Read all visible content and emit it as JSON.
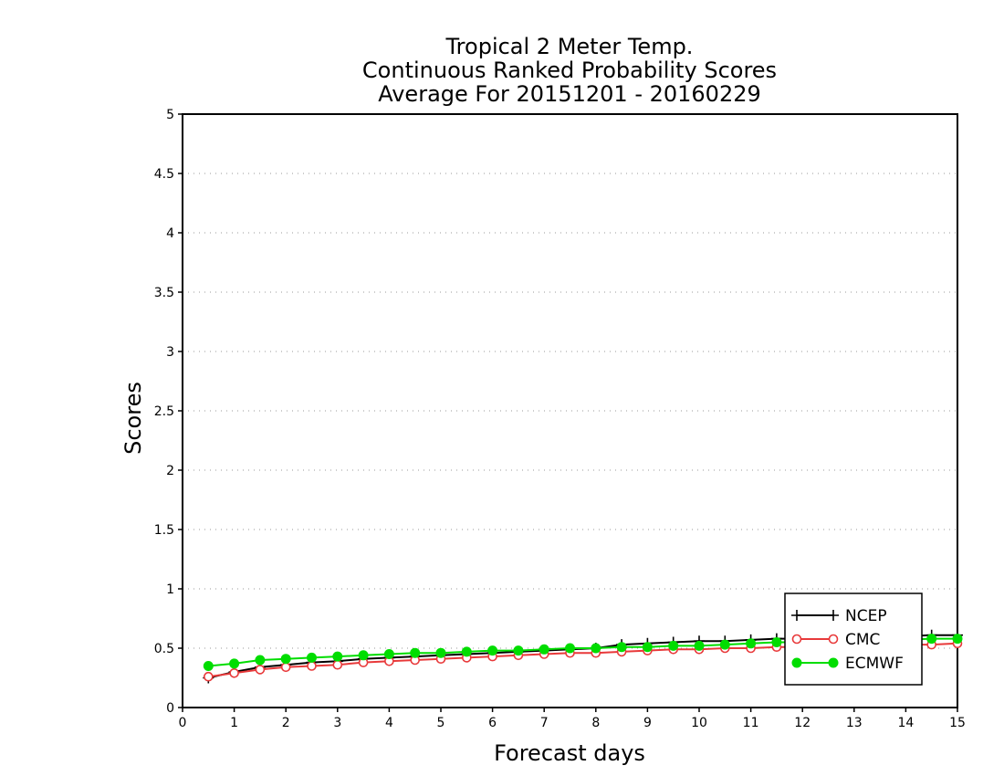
{
  "chart_data": {
    "type": "line",
    "title": [
      "Tropical 2 Meter Temp.",
      "Continuous Ranked Probability Scores",
      "Average For 20151201 - 20160229"
    ],
    "xlabel": "Forecast days",
    "ylabel": "Scores",
    "xlim": [
      0,
      15
    ],
    "ylim": [
      0,
      5
    ],
    "xticks": [
      0,
      1,
      2,
      3,
      4,
      5,
      6,
      7,
      8,
      9,
      10,
      11,
      12,
      13,
      14,
      15
    ],
    "yticks": [
      0,
      0.5,
      1,
      1.5,
      2,
      2.5,
      3,
      3.5,
      4,
      4.5,
      5
    ],
    "ytick_labels": [
      "0",
      "0.5",
      "1",
      "1.5",
      "2",
      "2.5",
      "3",
      "3.5",
      "4",
      "4.5",
      "5"
    ],
    "grid": "horizontal dotted",
    "legend_position": "bottom-right",
    "x": [
      0.5,
      1,
      1.5,
      2,
      2.5,
      3,
      3.5,
      4,
      4.5,
      5,
      5.5,
      6,
      6.5,
      7,
      7.5,
      8,
      8.5,
      9,
      9.5,
      10,
      10.5,
      11,
      11.5,
      12,
      12.5,
      13,
      13.5,
      14,
      14.5,
      15
    ],
    "series": [
      {
        "name": "NCEP",
        "color": "#000000",
        "marker": "plus",
        "values": [
          0.25,
          0.3,
          0.34,
          0.36,
          0.38,
          0.39,
          0.41,
          0.42,
          0.43,
          0.44,
          0.45,
          0.46,
          0.47,
          0.48,
          0.49,
          0.5,
          0.53,
          0.54,
          0.55,
          0.56,
          0.56,
          0.57,
          0.58,
          0.58,
          0.59,
          0.59,
          0.6,
          0.6,
          0.61,
          0.61
        ]
      },
      {
        "name": "CMC",
        "color": "#e8393a",
        "marker": "open-circle",
        "values": [
          0.26,
          0.29,
          0.32,
          0.34,
          0.35,
          0.36,
          0.38,
          0.39,
          0.4,
          0.41,
          0.42,
          0.43,
          0.44,
          0.45,
          0.46,
          0.46,
          0.47,
          0.48,
          0.49,
          0.49,
          0.5,
          0.5,
          0.51,
          0.51,
          0.52,
          0.52,
          0.53,
          0.53,
          0.53,
          0.54
        ]
      },
      {
        "name": "ECMWF",
        "color": "#00dd00",
        "marker": "filled-circle",
        "values": [
          0.35,
          0.37,
          0.4,
          0.41,
          0.42,
          0.43,
          0.44,
          0.45,
          0.46,
          0.46,
          0.47,
          0.48,
          0.48,
          0.49,
          0.5,
          0.5,
          0.51,
          0.51,
          0.52,
          0.52,
          0.53,
          0.54,
          0.55,
          0.55,
          0.56,
          0.56,
          0.57,
          0.57,
          0.58,
          0.58
        ]
      }
    ]
  }
}
